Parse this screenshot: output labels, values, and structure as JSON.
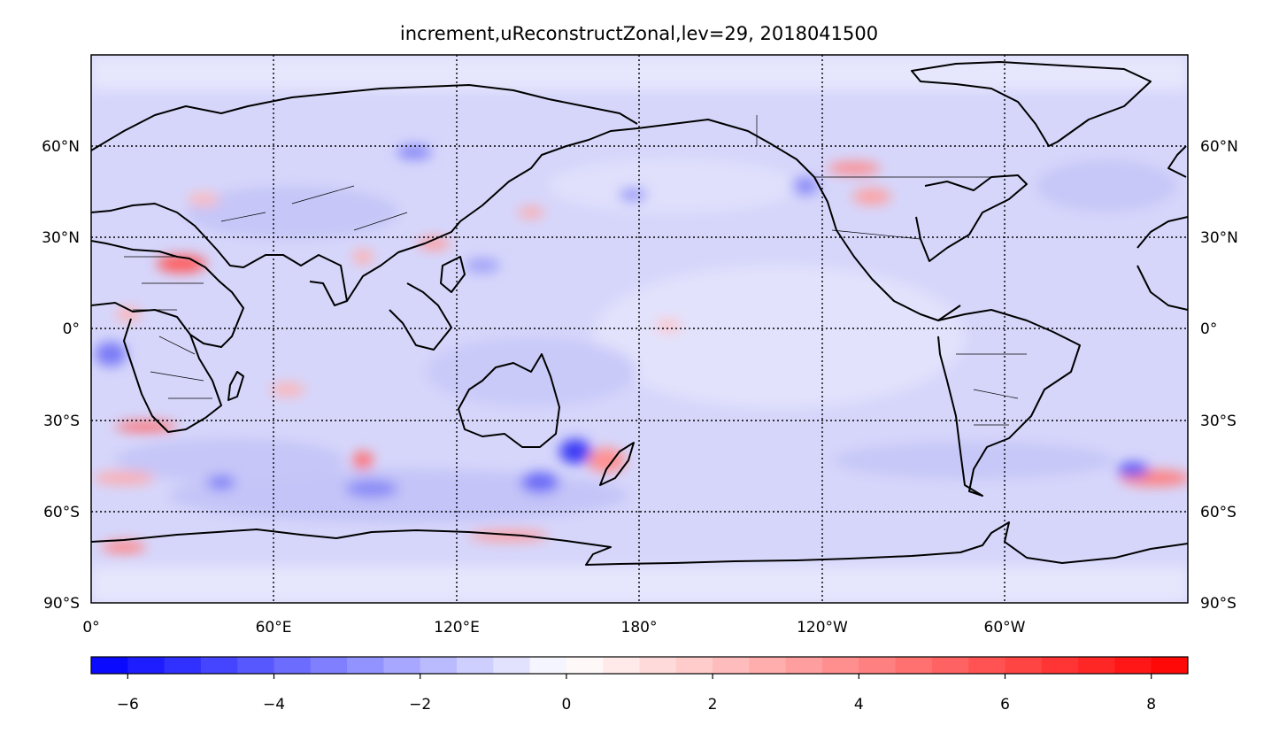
{
  "title": "increment,uReconstructZonal,lev=29,  2018041500",
  "lon_tick_labels": [
    "0°",
    "60°E",
    "120°E",
    "180°",
    "120°W",
    "60°W"
  ],
  "lat_tick_labels": [
    "60°N",
    "30°N",
    "0°",
    "30°S",
    "60°S",
    "90°S"
  ],
  "colorbar": {
    "ticks": [
      "−6",
      "−4",
      "−2",
      "0",
      "2",
      "4",
      "6",
      "8"
    ],
    "range": [
      -6.5,
      8.5
    ],
    "step": 0.5,
    "low_color": "#0000ff",
    "mid_color": "#ffffff",
    "high_color": "#ff0000"
  },
  "chart_data": {
    "type": "heatmap",
    "projection": "PlateCarree (central longitude 180°)",
    "variable": "uReconstructZonal increment",
    "level": 29,
    "date": "2018041500",
    "x_extent": [
      0,
      360
    ],
    "y_extent": [
      -90,
      90
    ],
    "gridlines": "dotted, every 60° lon and 30° lat",
    "colormap": "bwr",
    "color_range": [
      -6.5,
      8.5
    ],
    "notable_features": [
      {
        "region": "Arabian Peninsula",
        "sign": "positive"
      },
      {
        "region": "Southern Africa",
        "sign": "positive"
      },
      {
        "region": "New Zealand",
        "sign": "positive"
      },
      {
        "region": "South of Australia",
        "sign": "negative"
      },
      {
        "region": "South Atlantic",
        "sign": "mixed"
      },
      {
        "region": "North America",
        "sign": "positive"
      },
      {
        "region": "Antarctic coast",
        "sign": "positive"
      }
    ]
  }
}
